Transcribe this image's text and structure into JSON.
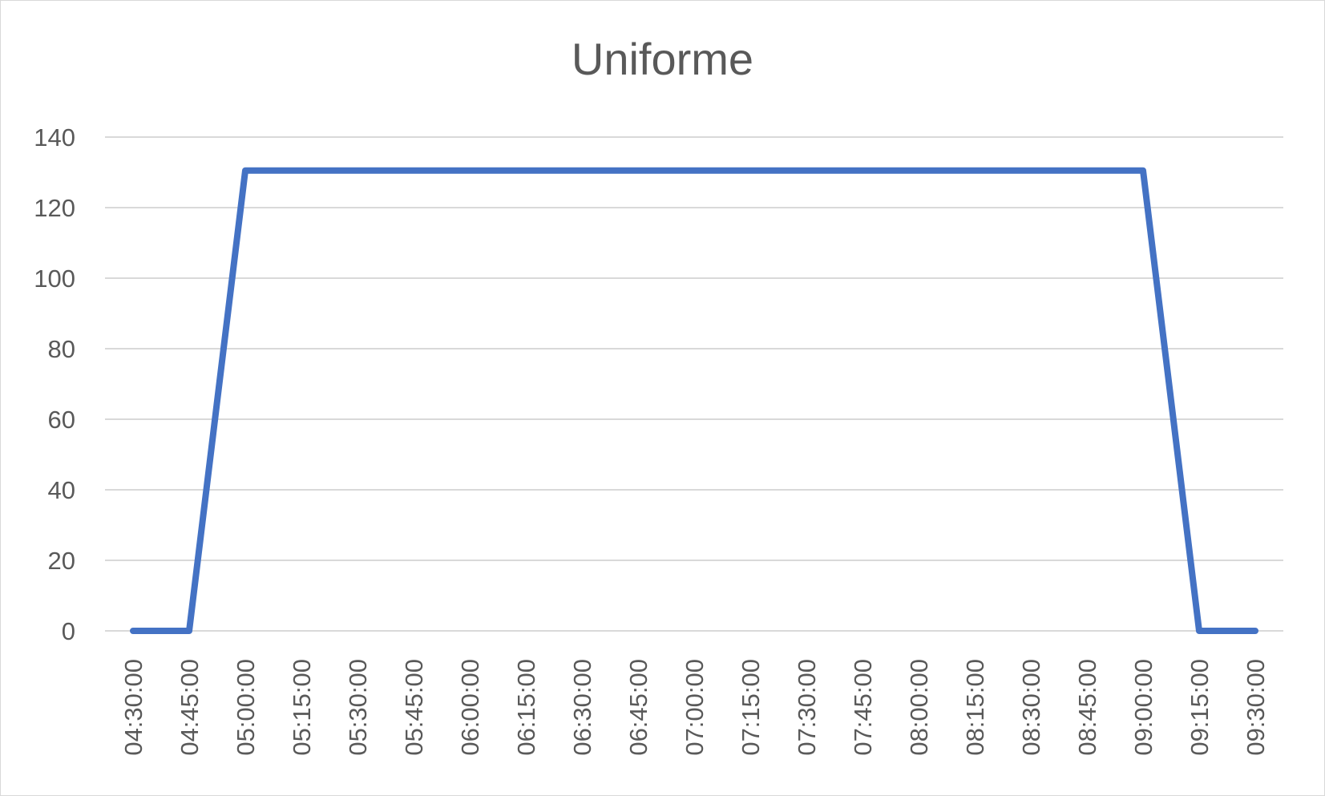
{
  "chart_data": {
    "type": "line",
    "title": "Uniforme",
    "xlabel": "",
    "ylabel": "",
    "categories": [
      "04:30:00",
      "04:45:00",
      "05:00:00",
      "05:15:00",
      "05:30:00",
      "05:45:00",
      "06:00:00",
      "06:15:00",
      "06:30:00",
      "06:45:00",
      "07:00:00",
      "07:15:00",
      "07:30:00",
      "07:45:00",
      "08:00:00",
      "08:15:00",
      "08:30:00",
      "08:45:00",
      "09:00:00",
      "09:15:00",
      "09:30:00"
    ],
    "series": [
      {
        "values": [
          0,
          0,
          130.5,
          130.5,
          130.5,
          130.5,
          130.5,
          130.5,
          130.5,
          130.5,
          130.5,
          130.5,
          130.5,
          130.5,
          130.5,
          130.5,
          130.5,
          130.5,
          130.5,
          0,
          0
        ]
      }
    ],
    "ylim": [
      0,
      140
    ],
    "yticks": [
      0,
      20,
      40,
      60,
      80,
      100,
      120,
      140
    ],
    "grid": true,
    "legend": "none",
    "colors": {
      "line": "#4472c4",
      "grid": "#d9d9d9",
      "text": "#595959"
    }
  }
}
